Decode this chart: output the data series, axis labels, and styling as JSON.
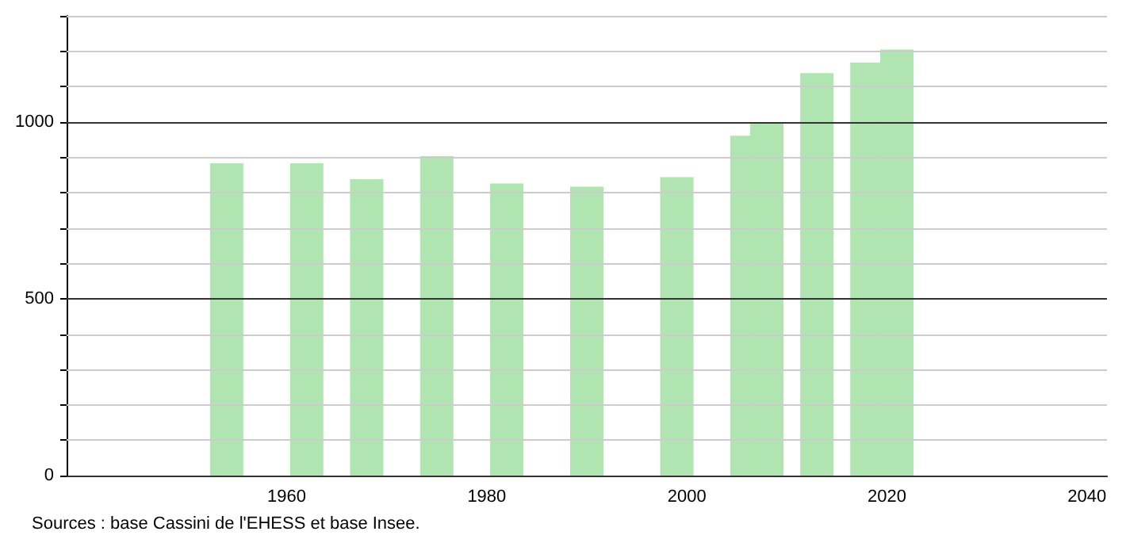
{
  "chart_data": {
    "type": "bar",
    "x": [
      1954,
      1962,
      1968,
      1975,
      1982,
      1990,
      1999,
      2006,
      2008,
      2013,
      2018,
      2021
    ],
    "values": [
      883,
      883,
      838,
      903,
      826,
      817,
      844,
      961,
      998,
      1138,
      1168,
      1205
    ],
    "color": "#b0e4b0",
    "xlim": [
      1938,
      2042
    ],
    "xticks": [
      1960,
      1980,
      2000,
      2020,
      2040
    ],
    "ylim": [
      0,
      1300
    ],
    "yticks": [
      0,
      {
        "value": 100,
        "label": null
      },
      {
        "value": 200,
        "label": null
      },
      {
        "value": 300,
        "label": null
      },
      {
        "value": 400,
        "label": null
      },
      500,
      {
        "value": 600,
        "label": null
      },
      {
        "value": 700,
        "label": null
      },
      {
        "value": 800,
        "label": null
      },
      {
        "value": 900,
        "label": null
      },
      1000,
      {
        "value": 1100,
        "label": null
      },
      {
        "value": 1200,
        "label": null
      },
      {
        "value": 1300,
        "label": null
      }
    ],
    "grid": "y",
    "annotations": [
      "Sources : base Cassini de l'EHESS et base Insee."
    ]
  }
}
